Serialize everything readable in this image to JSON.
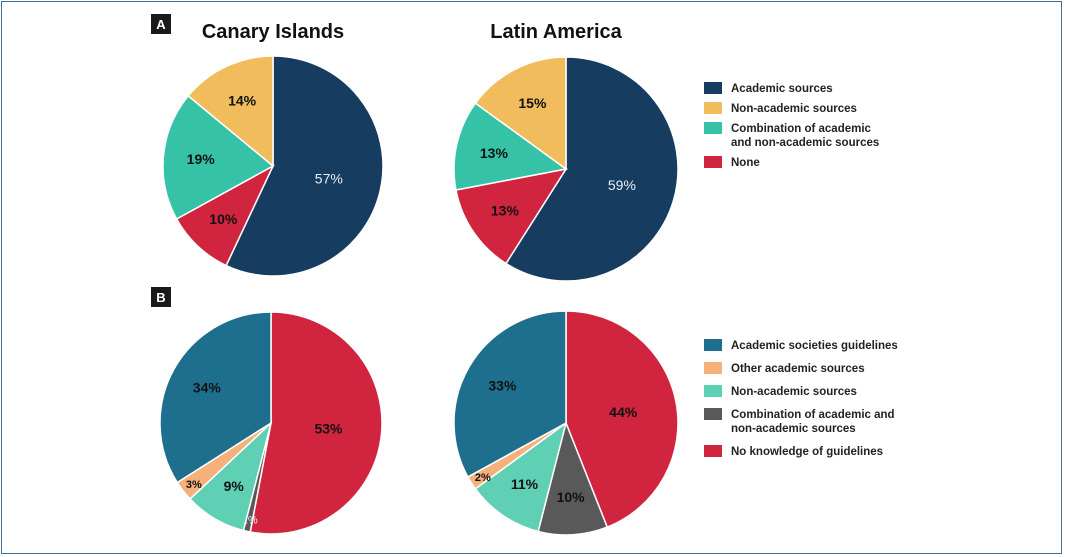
{
  "colors": {
    "frame": "#3c6f96",
    "A_academic": "#163c5f",
    "A_nonacademic": "#f1bd5c",
    "A_combination": "#36c2a6",
    "A_none": "#d1243f",
    "B_societies": "#1e6f8e",
    "B_other": "#f5b07c",
    "B_nonacademic": "#5fd0b4",
    "B_combination": "#595959",
    "B_noknowledge": "#d1243f"
  },
  "panels": {
    "A": {
      "badge": "A"
    },
    "B": {
      "badge": "B"
    }
  },
  "chart_data": [
    {
      "panel": "A",
      "type": "pie",
      "title": "Canary Islands",
      "slices": [
        {
          "label": "Academic sources",
          "value": 57,
          "text": "57%"
        },
        {
          "label": "None",
          "value": 10,
          "text": "10%"
        },
        {
          "label": "Combination of academic and non-academic sources",
          "value": 19,
          "text": "19%"
        },
        {
          "label": "Non-academic sources",
          "value": 14,
          "text": "14%"
        }
      ]
    },
    {
      "panel": "A",
      "type": "pie",
      "title": "Latin America",
      "slices": [
        {
          "label": "Academic sources",
          "value": 59,
          "text": "59%"
        },
        {
          "label": "None",
          "value": 13,
          "text": "13%"
        },
        {
          "label": "Combination of academic and non-academic sources",
          "value": 13,
          "text": "13%"
        },
        {
          "label": "Non-academic sources",
          "value": 15,
          "text": "15%"
        }
      ]
    },
    {
      "panel": "B",
      "type": "pie",
      "title": "",
      "slices": [
        {
          "label": "No knowledge of guidelines",
          "value": 53,
          "text": "53%"
        },
        {
          "label": "Combination of academic and non-academic sources",
          "value": 1,
          "text": "1%"
        },
        {
          "label": "Non-academic sources",
          "value": 9,
          "text": "9%"
        },
        {
          "label": "Other academic sources",
          "value": 3,
          "text": "3%"
        },
        {
          "label": "Academic societies guidelines",
          "value": 34,
          "text": "34%"
        }
      ]
    },
    {
      "panel": "B",
      "type": "pie",
      "title": "",
      "slices": [
        {
          "label": "No knowledge of guidelines",
          "value": 44,
          "text": "44%"
        },
        {
          "label": "Combination of academic and non-academic sources",
          "value": 10,
          "text": "10%"
        },
        {
          "label": "Non-academic sources",
          "value": 11,
          "text": "11%"
        },
        {
          "label": "Other academic sources",
          "value": 2,
          "text": "2%"
        },
        {
          "label": "Academic societies guidelines",
          "value": 33,
          "text": "33%"
        }
      ]
    }
  ],
  "legend_A": [
    {
      "lines": [
        "Academic sources"
      ],
      "color_key": "A_academic"
    },
    {
      "lines": [
        "Non-academic sources"
      ],
      "color_key": "A_nonacademic"
    },
    {
      "lines": [
        "Combination of academic",
        "and non-academic sources"
      ],
      "color_key": "A_combination"
    },
    {
      "lines": [
        "None"
      ],
      "color_key": "A_none"
    }
  ],
  "legend_B": [
    {
      "lines": [
        "Academic societies guidelines"
      ],
      "color_key": "B_societies"
    },
    {
      "lines": [
        "Other academic sources"
      ],
      "color_key": "B_other"
    },
    {
      "lines": [
        "Non-academic sources"
      ],
      "color_key": "B_nonacademic"
    },
    {
      "lines": [
        "Combination of academic and",
        "non-academic sources"
      ],
      "color_key": "B_combination"
    },
    {
      "lines": [
        "No knowledge of guidelines"
      ],
      "color_key": "B_noknowledge"
    }
  ]
}
